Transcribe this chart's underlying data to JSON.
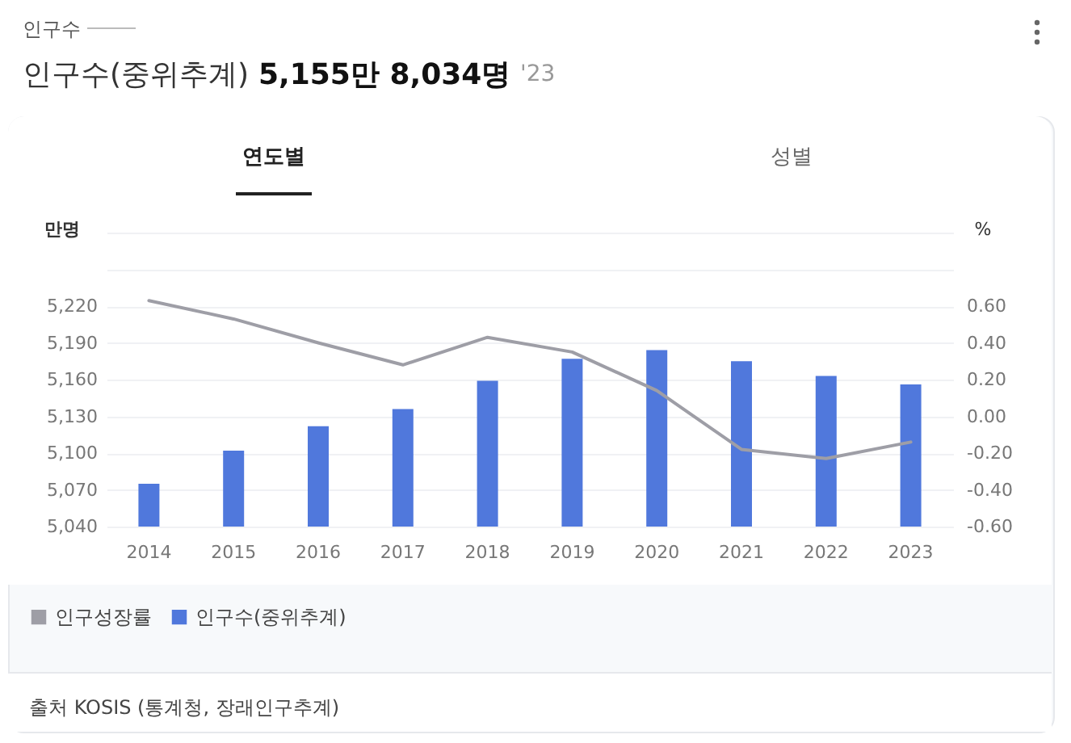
{
  "chart_data": {
    "type": "bar",
    "title": "인구수(중위추계)",
    "subtitle": "5,155만 8,034명",
    "annotations": [
      "인구수",
      "'23",
      "연도별",
      "성별",
      "출처 KOSIS (통계청, 장래인구추계)"
    ],
    "ylabel": "만명",
    "y2label": "%",
    "categories": [
      "2014",
      "2015",
      "2016",
      "2017",
      "2018",
      "2019",
      "2020",
      "2021",
      "2022",
      "2023"
    ],
    "series": [
      {
        "name": "인구성장률",
        "type": "line",
        "axis": "y2",
        "color": "#9e9ea6",
        "values": [
          0.63,
          0.53,
          0.4,
          0.28,
          0.43,
          0.35,
          0.14,
          -0.18,
          -0.23,
          -0.14
        ]
      },
      {
        "name": "인구수(중위추계)",
        "color": "#5078dc",
        "values": [
          5075,
          5102,
          5122,
          5136,
          5159,
          5177,
          5184,
          5175,
          5163,
          5156
        ]
      }
    ],
    "ylim": [
      5040,
      5280
    ],
    "yticks": [
      {
        "value": 5040,
        "label": "5,040"
      },
      {
        "value": 5070,
        "label": "5,070"
      },
      {
        "value": 5100,
        "label": "5,100"
      },
      {
        "value": 5130,
        "label": "5,130"
      },
      {
        "value": 5160,
        "label": "5,160"
      },
      {
        "value": 5190,
        "label": "5,190"
      },
      {
        "value": 5220,
        "label": "5,220"
      },
      {
        "value": 5250,
        "label": null
      },
      {
        "value": 5280,
        "label": null
      }
    ],
    "y2lim": [
      -0.6,
      1.0
    ],
    "y2ticks": [
      {
        "value": -0.6,
        "label": "-0.60"
      },
      {
        "value": -0.4,
        "label": "-0.40"
      },
      {
        "value": -0.2,
        "label": "-0.20"
      },
      {
        "value": 0,
        "label": "0.00"
      },
      {
        "value": 0.2,
        "label": "0.20"
      },
      {
        "value": 0.4,
        "label": "0.40"
      },
      {
        "value": 0.6,
        "label": "0.60"
      },
      {
        "value": 0.8,
        "label": null
      },
      {
        "value": 1.0,
        "label": null
      }
    ],
    "grid": "y",
    "legend": "bottom",
    "marker": "none",
    "line_style": "solid"
  }
}
